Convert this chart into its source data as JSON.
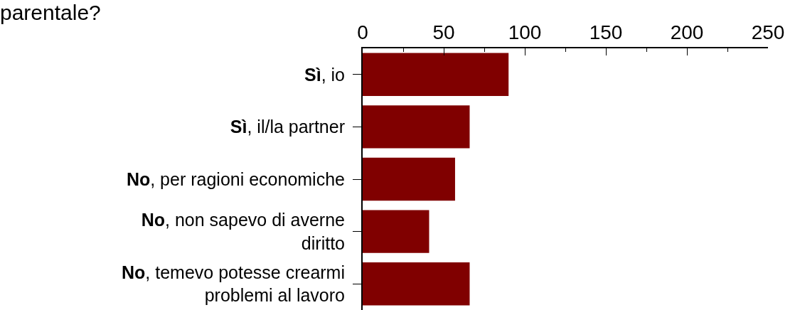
{
  "chart_data": {
    "type": "bar",
    "orientation": "horizontal",
    "title": "parentale?",
    "categories": [
      "Sì, io",
      "Sì, il/la partner",
      "No, per ragioni economiche",
      "No, non sapevo di averne diritto",
      "No, temevo potesse crearmi problemi al lavoro"
    ],
    "values": [
      90,
      66,
      57,
      41,
      66
    ],
    "color": "#800000",
    "xlim": [
      0,
      250
    ],
    "xticks": [
      0,
      {
        "value": 25,
        "label": null
      },
      50,
      {
        "value": 75,
        "label": null
      },
      100,
      {
        "value": 125,
        "label": null
      },
      150,
      {
        "value": 175,
        "label": null
      },
      200,
      {
        "value": 225,
        "label": null
      },
      250
    ],
    "grid": false
  }
}
